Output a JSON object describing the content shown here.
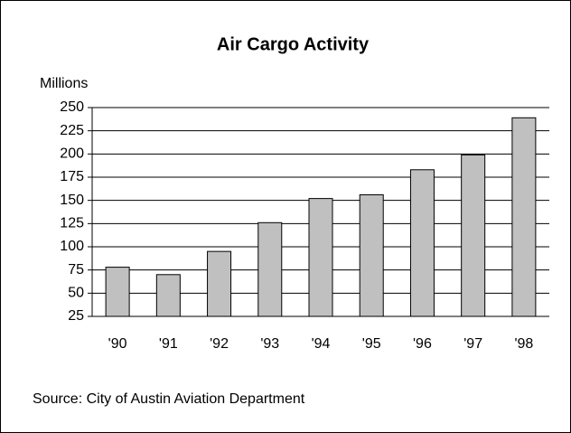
{
  "chart_data": {
    "type": "bar",
    "title": "Air Cargo Activity",
    "y_label": "Millions",
    "categories": [
      "'90",
      "'91",
      "'92",
      "'93",
      "'94",
      "'95",
      "'96",
      "'97",
      "'98"
    ],
    "values": [
      78,
      70,
      95,
      126,
      152,
      156,
      183,
      199,
      239
    ],
    "color": "#c0c0c0",
    "ylim": [
      25,
      250
    ],
    "yticks": [
      25,
      50,
      75,
      100,
      125,
      150,
      175,
      200,
      225,
      250
    ],
    "grid": true,
    "source": "Source:  City of Austin Aviation Department"
  }
}
